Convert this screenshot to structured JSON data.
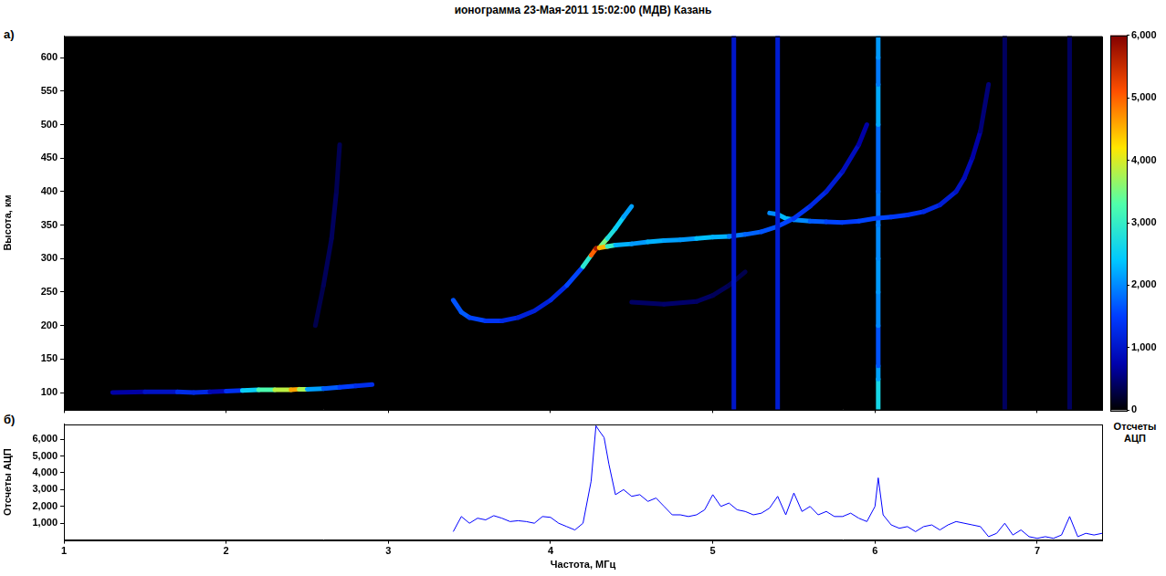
{
  "chart_data": [
    {
      "type": "heatmap",
      "panel": "а)",
      "title": "ионограмма 23-Мая-2011 15:02:00 (МДВ) Казань",
      "ylabel": "Высота, км",
      "xlim": [
        1,
        7.4
      ],
      "xticks": [
        1,
        2,
        3,
        4,
        5,
        6,
        7
      ],
      "ylim": [
        75,
        632
      ],
      "yticks": [
        100,
        150,
        200,
        250,
        300,
        350,
        400,
        450,
        500,
        550,
        600
      ],
      "tick_labels": "y",
      "grid": false,
      "traces": [
        {
          "x": [
            5.13,
            5.13
          ],
          "y": [
            75,
            632
          ],
          "counts": [
            1000,
            1000
          ]
        },
        {
          "x": [
            5.4,
            5.4
          ],
          "y": [
            75,
            632
          ],
          "counts": [
            1100,
            1100
          ]
        },
        {
          "x": [
            6.8,
            6.8
          ],
          "y": [
            75,
            632
          ],
          "counts": [
            400,
            400
          ]
        },
        {
          "x": [
            7.2,
            7.2
          ],
          "y": [
            75,
            632
          ],
          "counts": [
            400,
            400
          ]
        },
        {
          "x": [
            1.3,
            1.5,
            1.7,
            1.8,
            1.9,
            2.0,
            2.1,
            2.2,
            2.3,
            2.4,
            2.45,
            2.5,
            2.6,
            2.7,
            2.8,
            2.9
          ],
          "y": [
            100,
            101,
            101,
            100,
            101,
            102,
            103,
            104,
            104,
            104,
            105,
            105,
            106,
            108,
            110,
            112
          ],
          "counts": [
            500,
            900,
            1000,
            1600,
            900,
            700,
            2000,
            3000,
            3500,
            4200,
            5000,
            2500,
            1800,
            1600,
            1400,
            1200
          ]
        },
        {
          "x": [
            2.55,
            2.6,
            2.65,
            2.68,
            2.7
          ],
          "y": [
            200,
            260,
            330,
            400,
            470
          ],
          "counts": [
            300,
            350,
            400,
            400,
            300
          ]
        },
        {
          "x": [
            4.5,
            4.7,
            4.9,
            5.0,
            5.1,
            5.2
          ],
          "y": [
            235,
            232,
            236,
            245,
            260,
            280
          ],
          "counts": [
            400,
            450,
            450,
            400,
            350,
            300
          ]
        },
        {
          "x": [
            3.4,
            3.45,
            3.5,
            3.6,
            3.7,
            3.8,
            3.9,
            4.0,
            4.1,
            4.2,
            4.25,
            4.28,
            4.3,
            4.35,
            4.4,
            4.5,
            4.6,
            4.7,
            4.8,
            4.9,
            5.0,
            5.1,
            5.2,
            5.3,
            5.4,
            5.5,
            5.6,
            5.7,
            5.8,
            5.9,
            5.95
          ],
          "y": [
            238,
            220,
            212,
            207,
            207,
            212,
            222,
            238,
            260,
            288,
            305,
            315,
            316,
            318,
            320,
            322,
            325,
            327,
            328,
            330,
            332,
            333,
            336,
            340,
            348,
            360,
            378,
            400,
            430,
            470,
            500
          ],
          "counts": [
            1500,
            1800,
            1600,
            1500,
            1300,
            1200,
            1100,
            1200,
            1300,
            1800,
            4000,
            6000,
            5500,
            3500,
            2500,
            2000,
            2200,
            2300,
            2000,
            2200,
            2500,
            2000,
            1800,
            1700,
            1600,
            1500,
            1300,
            1200,
            1000,
            800,
            600
          ]
        },
        {
          "x": [
            4.3,
            4.35,
            4.4,
            4.45,
            4.5
          ],
          "y": [
            316,
            330,
            345,
            362,
            378
          ],
          "counts": [
            4000,
            3000,
            2500,
            2500,
            1800
          ]
        },
        {
          "x": [
            5.35,
            5.4,
            5.45,
            5.5,
            5.6,
            5.7,
            5.8,
            5.9,
            6.0,
            6.1,
            6.2,
            6.3,
            6.4,
            6.5,
            6.55,
            6.6,
            6.65,
            6.7
          ],
          "y": [
            368,
            366,
            360,
            358,
            356,
            355,
            354,
            356,
            360,
            362,
            365,
            370,
            380,
            400,
            420,
            450,
            490,
            560
          ],
          "counts": [
            1800,
            2200,
            2400,
            2200,
            1800,
            1600,
            1500,
            1500,
            1600,
            1500,
            1400,
            1300,
            1200,
            1000,
            900,
            800,
            600,
            400
          ]
        },
        {
          "x": [
            6.02,
            6.02,
            6.02,
            6.02,
            6.02,
            6.02,
            6.02,
            6.02,
            6.02,
            6.02,
            6.02,
            6.02,
            6.02
          ],
          "y": [
            75,
            120,
            140,
            200,
            250,
            300,
            350,
            400,
            500,
            540,
            560,
            600,
            632
          ],
          "counts": [
            2500,
            2800,
            1500,
            1800,
            2200,
            2000,
            2000,
            1800,
            1800,
            2600,
            1800,
            2000,
            2200
          ]
        }
      ],
      "colorbar": {
        "label": "Отсчеты АЦП",
        "range": [
          0,
          6000
        ],
        "ticks": [
          0,
          1000,
          2000,
          3000,
          4000,
          5000,
          6000
        ]
      }
    },
    {
      "type": "line",
      "panel": "б)",
      "xlabel": "Частота, МГц",
      "ylabel": "Отсчеты АЦП",
      "color": "#0000ff",
      "xlim": [
        1,
        7.4
      ],
      "xticks": [
        1,
        2,
        3,
        4,
        5,
        6,
        7
      ],
      "ylim": [
        0,
        6900
      ],
      "yticks": [
        1000,
        2000,
        3000,
        4000,
        5000,
        6000
      ],
      "grid": false,
      "x": [
        3.4,
        3.45,
        3.5,
        3.55,
        3.6,
        3.65,
        3.7,
        3.75,
        3.8,
        3.85,
        3.9,
        3.95,
        4.0,
        4.05,
        4.1,
        4.15,
        4.2,
        4.25,
        4.28,
        4.3,
        4.33,
        4.36,
        4.4,
        4.45,
        4.5,
        4.55,
        4.6,
        4.65,
        4.7,
        4.75,
        4.8,
        4.85,
        4.9,
        4.95,
        5.0,
        5.05,
        5.1,
        5.15,
        5.2,
        5.25,
        5.3,
        5.35,
        5.4,
        5.45,
        5.5,
        5.55,
        5.6,
        5.65,
        5.7,
        5.75,
        5.8,
        5.85,
        5.9,
        5.95,
        6.0,
        6.02,
        6.05,
        6.1,
        6.15,
        6.2,
        6.25,
        6.3,
        6.35,
        6.4,
        6.45,
        6.5,
        6.55,
        6.6,
        6.65,
        6.7,
        6.75,
        6.8,
        6.85,
        6.9,
        6.95,
        7.0,
        7.05,
        7.1,
        7.15,
        7.2,
        7.25,
        7.3,
        7.35,
        7.4
      ],
      "values": [
        500,
        1400,
        1000,
        1300,
        1200,
        1450,
        1300,
        1100,
        1150,
        1100,
        1000,
        1400,
        1350,
        1000,
        800,
        600,
        1000,
        3500,
        6800,
        6500,
        6100,
        4500,
        2700,
        3000,
        2600,
        2700,
        2300,
        2500,
        2000,
        1500,
        1500,
        1400,
        1500,
        1800,
        2700,
        2000,
        2200,
        1800,
        1700,
        1500,
        1600,
        1900,
        2600,
        1500,
        2800,
        1700,
        2000,
        1500,
        1700,
        1400,
        1400,
        1600,
        1300,
        1100,
        2000,
        3700,
        1500,
        900,
        700,
        800,
        500,
        800,
        900,
        600,
        900,
        1100,
        1000,
        900,
        800,
        200,
        400,
        1000,
        300,
        600,
        200,
        100,
        200,
        100,
        300,
        1400,
        200,
        400,
        300,
        400
      ]
    }
  ]
}
